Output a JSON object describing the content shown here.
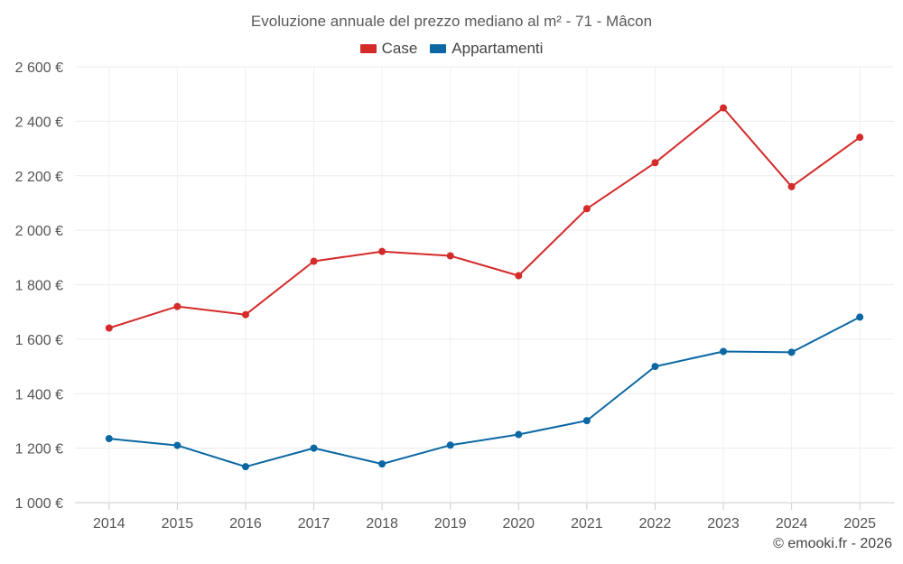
{
  "chart_data": {
    "type": "line",
    "title": "Evoluzione annuale del prezzo mediano al m² - 71 - Mâcon",
    "categories": [
      "2014",
      "2015",
      "2016",
      "2017",
      "2018",
      "2019",
      "2020",
      "2021",
      "2022",
      "2023",
      "2024",
      "2025"
    ],
    "series": [
      {
        "name": "Case",
        "color": "#d42a2a",
        "values": [
          1641,
          1720,
          1690,
          1886,
          1922,
          1906,
          1833,
          2079,
          2248,
          2449,
          2160,
          2341
        ]
      },
      {
        "name": "Appartamenti",
        "color": "#0a67a3",
        "values": [
          1235,
          1210,
          1132,
          1200,
          1142,
          1211,
          1250,
          1301,
          1500,
          1555,
          1552,
          1681
        ]
      }
    ],
    "ylim": [
      1000,
      2600
    ],
    "yticks": [
      1000,
      1200,
      1400,
      1600,
      1800,
      2000,
      2200,
      2400,
      2600
    ],
    "ytick_labels": [
      "1 000 €",
      "1 200 €",
      "1 400 €",
      "1 600 €",
      "1 800 €",
      "2 000 €",
      "2 200 €",
      "2 400 €",
      "2 600 €"
    ],
    "grid": true,
    "legend_position": "top-center",
    "xlabel": "",
    "ylabel": ""
  },
  "credit": "© emooki.fr - 2026"
}
